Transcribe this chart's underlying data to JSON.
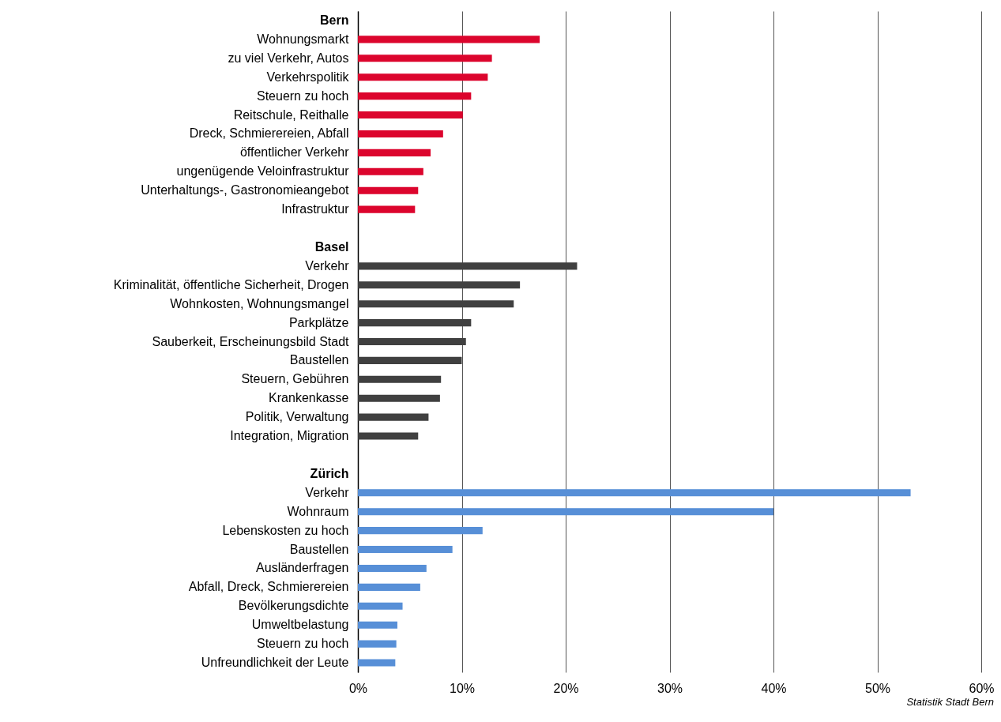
{
  "chart_data": {
    "type": "bar",
    "orientation": "horizontal",
    "categories": [
      "Bern",
      "Wohnungsmarkt",
      "zu viel Verkehr, Autos",
      "Verkehrspolitik",
      "Steuern zu hoch",
      "Reitschule, Reithalle",
      "Dreck, Schmierereien, Abfall",
      "öffentlicher Verkehr",
      "ungenügende Veloinfrastruktur",
      "Unterhaltungs-, Gastronomieangebot",
      "Infrastruktur",
      null,
      "Basel",
      "Verkehr",
      "Kriminalität, öffentliche Sicherheit, Drogen",
      "Wohnkosten, Wohnungsmangel",
      "Parkplätze",
      "Sauberkeit, Erscheinungsbild Stadt",
      "Baustellen",
      "Steuern, Gebühren",
      "Krankenkasse",
      "Politik, Verwaltung",
      "Integration, Migration",
      null,
      "Zürich",
      "Verkehr",
      "Wohnraum",
      "Lebenskosten zu hoch",
      "Baustellen",
      "Ausländerfragen",
      "Abfall, Dreck, Schmierereien",
      "Bevölkerungsdichte",
      "Umweltbelastung",
      "Steuern zu hoch",
      "Unfreundlichkeit der Leute"
    ],
    "series": [
      {
        "color": "#dc052d",
        "values": [
          null,
          17.5,
          12.9,
          12.5,
          10.9,
          10.1,
          8.2,
          7.0,
          6.3,
          5.8,
          5.5,
          null,
          null,
          null,
          null,
          null,
          null,
          null,
          null,
          null,
          null,
          null,
          null,
          null,
          null,
          null,
          null,
          null,
          null,
          null,
          null,
          null,
          null,
          null,
          null
        ]
      },
      {
        "color": "#404040",
        "values": [
          null,
          null,
          null,
          null,
          null,
          null,
          null,
          null,
          null,
          null,
          null,
          null,
          null,
          21.1,
          15.6,
          15.0,
          10.9,
          10.4,
          10.0,
          8.0,
          7.9,
          6.8,
          5.8,
          null,
          null,
          null,
          null,
          null,
          null,
          null,
          null,
          null,
          null,
          null,
          null
        ]
      },
      {
        "color": "#578fd7",
        "values": [
          null,
          null,
          null,
          null,
          null,
          null,
          null,
          null,
          null,
          null,
          null,
          null,
          null,
          null,
          null,
          null,
          null,
          null,
          null,
          null,
          null,
          null,
          null,
          null,
          null,
          53.2,
          40.0,
          12.0,
          9.1,
          6.6,
          6.0,
          4.3,
          3.8,
          3.7,
          3.6
        ]
      }
    ],
    "xlim": [
      0,
      60
    ],
    "xticks": [
      {
        "value": 0,
        "label": "0%"
      },
      {
        "value": 10,
        "label": "10%"
      },
      {
        "value": 20,
        "label": "20%"
      },
      {
        "value": 30,
        "label": "30%"
      },
      {
        "value": 40,
        "label": "40%"
      },
      {
        "value": 50,
        "label": "50%"
      },
      {
        "value": 60,
        "label": "60%"
      }
    ],
    "grid": "x",
    "annotations": [
      "Statistik Stadt Bern"
    ]
  }
}
